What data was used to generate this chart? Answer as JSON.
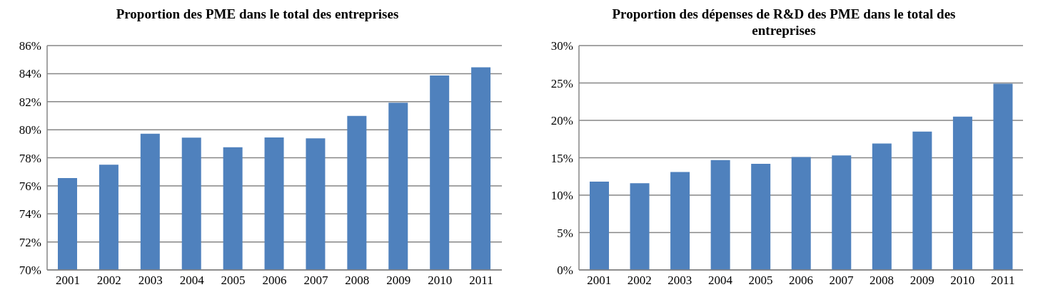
{
  "chart_data": [
    {
      "type": "bar",
      "title": "Proportion des PME dans le total des entreprises",
      "categories": [
        "2001",
        "2002",
        "2003",
        "2004",
        "2005",
        "2006",
        "2007",
        "2008",
        "2009",
        "2010",
        "2011"
      ],
      "values": [
        76.55,
        77.5,
        79.72,
        79.43,
        78.75,
        79.45,
        79.38,
        80.98,
        81.92,
        83.87,
        84.45
      ],
      "color": "#4f81bd",
      "ylim": [
        70,
        86
      ],
      "yticks": [
        {
          "value": 70,
          "label": "70%"
        },
        {
          "value": 72,
          "label": "72%"
        },
        {
          "value": 74,
          "label": "74%"
        },
        {
          "value": 76,
          "label": "76%"
        },
        {
          "value": 78,
          "label": "78%"
        },
        {
          "value": 80,
          "label": "80%"
        },
        {
          "value": 82,
          "label": "82%"
        },
        {
          "value": 84,
          "label": "84%"
        },
        {
          "value": 86,
          "label": "86%"
        }
      ],
      "grid": "y"
    },
    {
      "type": "bar",
      "title": "Proportion des dépenses de R&D des PME dans le total des entreprises",
      "categories": [
        "2001",
        "2002",
        "2003",
        "2004",
        "2005",
        "2006",
        "2007",
        "2008",
        "2009",
        "2010",
        "2011"
      ],
      "values": [
        11.8,
        11.6,
        13.1,
        14.7,
        14.2,
        15.1,
        15.3,
        16.9,
        18.5,
        20.5,
        24.9
      ],
      "color": "#4f81bd",
      "ylim": [
        0,
        30
      ],
      "yticks": [
        {
          "value": 0,
          "label": "0%"
        },
        {
          "value": 5,
          "label": "5%"
        },
        {
          "value": 10,
          "label": "10%"
        },
        {
          "value": 15,
          "label": "15%"
        },
        {
          "value": 20,
          "label": "20%"
        },
        {
          "value": 25,
          "label": "25%"
        },
        {
          "value": 30,
          "label": "30%"
        }
      ],
      "grid": "y"
    }
  ]
}
